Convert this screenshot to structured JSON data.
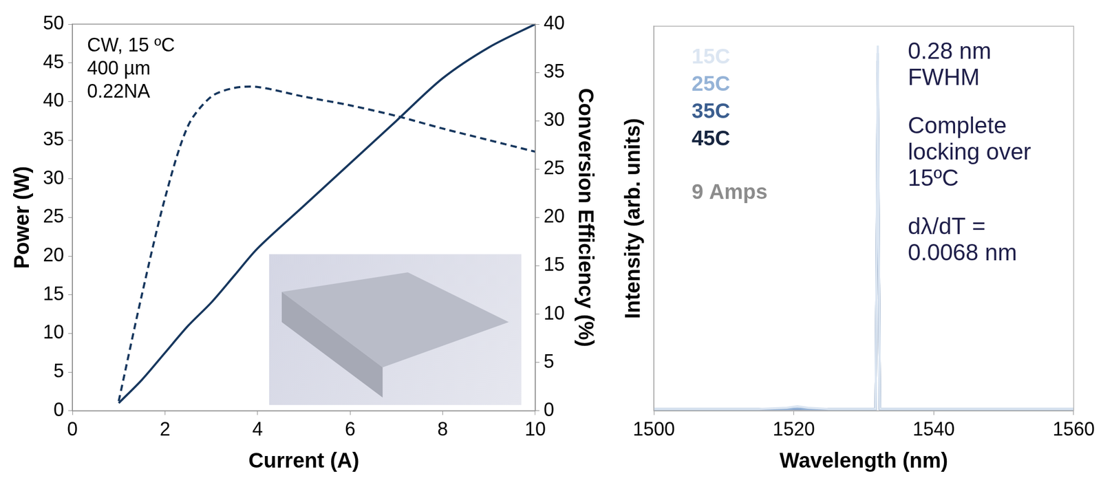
{
  "chart_data": [
    {
      "type": "line",
      "x": [
        1,
        1.5,
        2,
        2.5,
        3,
        3.5,
        4,
        5,
        6,
        7,
        8,
        9,
        10
      ],
      "xlim": [
        0,
        10
      ],
      "xticks": [
        0,
        2,
        4,
        6,
        8,
        10
      ],
      "ylim": [
        0,
        50
      ],
      "yticks": [
        0,
        5,
        10,
        15,
        20,
        25,
        30,
        35,
        40,
        45,
        50
      ],
      "y2lim": [
        0,
        40
      ],
      "y2ticks": [
        0,
        5,
        10,
        15,
        20,
        25,
        30,
        35,
        40
      ],
      "xlabel": "Current (A)",
      "ylabel": "Power (W)",
      "y2label": "Conversion Efficiency (%)",
      "annotations": [
        "CW, 15 ºC",
        "400 µm",
        "0.22NA"
      ],
      "grid": false,
      "series": [
        {
          "color": "#17375e",
          "line_style": "solid",
          "values": [
            1,
            4,
            7.5,
            11,
            14,
            17.5,
            21,
            26.5,
            32,
            37.5,
            43,
            47,
            50
          ]
        },
        {
          "color": "#17375e",
          "line_style": "dashed",
          "axis": "y2",
          "values": [
            1,
            12,
            22,
            29.5,
            32.5,
            33.4,
            33.5,
            32.5,
            31.6,
            30.5,
            29.2,
            28,
            26.8
          ]
        }
      ]
    },
    {
      "type": "line",
      "x": [
        1500,
        1515,
        1519,
        1520.5,
        1522,
        1525,
        1531.7,
        1531.86,
        1532,
        1532.14,
        1532.3,
        1536,
        1545,
        1560
      ],
      "xlim": [
        1500,
        1560
      ],
      "xticks": [
        1500,
        1520,
        1540,
        1560
      ],
      "ylim": [
        0,
        1
      ],
      "tick_labels": "x",
      "xlabel": "Wavelength (nm)",
      "ylabel": "Intensity (arb. units)",
      "annotations": [
        "9 Amps",
        "0.28 nm FWHM",
        "Complete locking over 15ºC",
        "dλ/dT = 0.0068 nm"
      ],
      "grid": false,
      "legend": "upper left",
      "series": [
        {
          "name": "15C",
          "color": "#dce6f2",
          "line_style": "solid",
          "values": [
            0.005,
            0.005,
            0.008,
            0.012,
            0.008,
            0.005,
            0.005,
            0.47,
            0.95,
            0.47,
            0.005,
            0.005,
            0.005,
            0.005
          ]
        },
        {
          "name": "25C",
          "color": "#95b3d7",
          "line_style": "solid",
          "values": [
            0.005,
            0.005,
            0.005,
            0.006,
            0.005,
            0.005,
            0.005,
            0.46,
            0.93,
            0.46,
            0.005,
            0.005,
            0.005,
            0.005
          ]
        },
        {
          "name": "35C",
          "color": "#3b5e8f",
          "line_style": "solid",
          "values": [
            0.005,
            0.005,
            0.005,
            0.005,
            0.005,
            0.005,
            0.005,
            0.455,
            0.91,
            0.455,
            0.005,
            0.005,
            0.005,
            0.005
          ]
        },
        {
          "name": "45C",
          "color": "#17253f",
          "line_style": "solid",
          "values": [
            0.005,
            0.005,
            0.005,
            0.005,
            0.005,
            0.005,
            0.005,
            0.44,
            0.88,
            0.44,
            0.005,
            0.005,
            0.005,
            0.005
          ]
        }
      ]
    }
  ]
}
